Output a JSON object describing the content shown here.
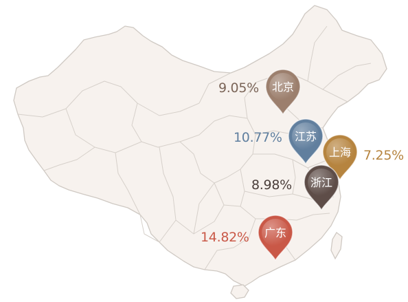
{
  "markers": [
    {
      "province": "北京",
      "share": "9.05%",
      "color": "#9c7f6d"
    },
    {
      "province": "江苏",
      "share": "10.77%",
      "color": "#617f9e"
    },
    {
      "province": "上海",
      "share": "7.25%",
      "color": "#b6843f"
    },
    {
      "province": "浙江",
      "share": "8.98%",
      "color": "#5e4d48"
    },
    {
      "province": "广东",
      "share": "14.82%",
      "color": "#c95847"
    }
  ],
  "colors": {
    "land": "#f7f2ee",
    "border": "#cfc9c3"
  }
}
